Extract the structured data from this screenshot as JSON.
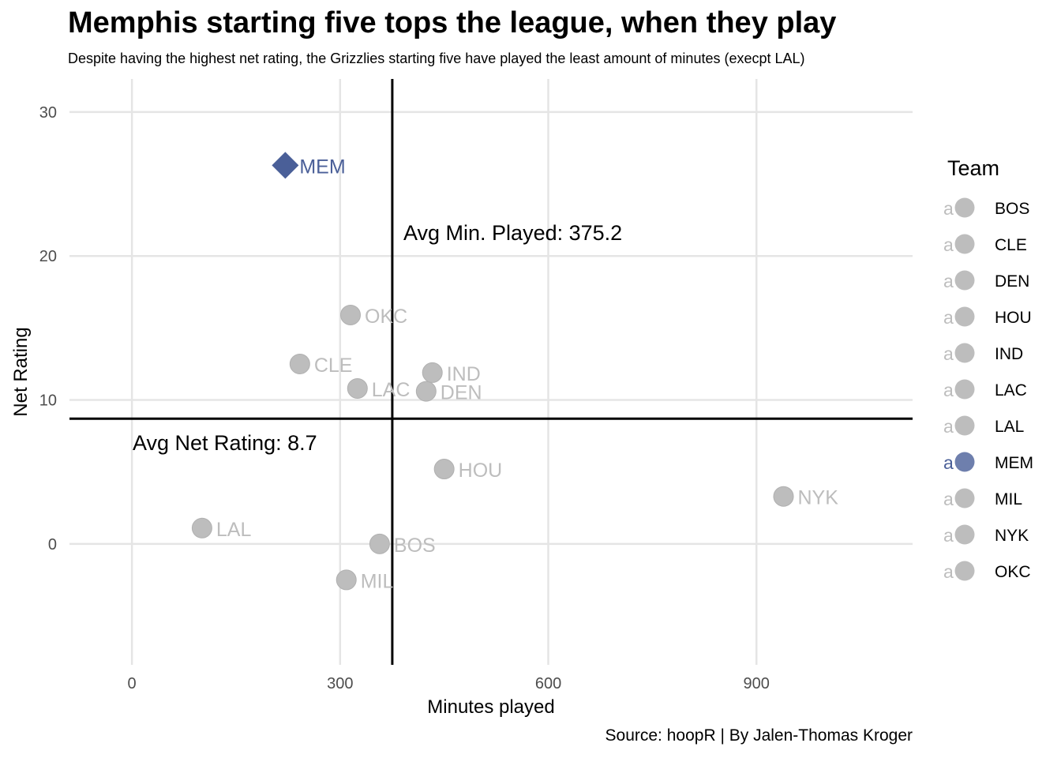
{
  "chart_data": {
    "type": "scatter",
    "title": "Memphis starting five tops the league, when they play",
    "subtitle": "Despite having the highest net rating, the Grizzlies starting five have played the least amount of minutes (execpt LAL)",
    "caption": "Source: hoopR | By Jalen-Thomas Kroger",
    "xlabel": "Minutes played",
    "ylabel": "Net Rating",
    "xlim": [
      -90,
      1125
    ],
    "ylim": [
      -8.4,
      32.3
    ],
    "x_ticks": [
      0,
      300,
      600,
      900
    ],
    "y_ticks": [
      0,
      10,
      20,
      30
    ],
    "grid": true,
    "legend": {
      "title": "Team",
      "position": "right",
      "glyph": "a"
    },
    "colors": {
      "highlight": "#4a5f98",
      "other": "#bdbdbd",
      "reference_line": "#000000",
      "grid": "#e5e5e5"
    },
    "reference_lines": {
      "vertical": {
        "x": 375.2,
        "label": "Avg Min. Played: 375.2"
      },
      "horizontal": {
        "y": 8.7,
        "label": "Avg Net Rating: 8.7"
      }
    },
    "points": [
      {
        "team": "BOS",
        "x": 357,
        "y": 0.0,
        "highlight": false
      },
      {
        "team": "CLE",
        "x": 242,
        "y": 12.5,
        "highlight": false
      },
      {
        "team": "DEN",
        "x": 424,
        "y": 10.6,
        "highlight": false
      },
      {
        "team": "HOU",
        "x": 450,
        "y": 5.2,
        "highlight": false
      },
      {
        "team": "IND",
        "x": 433,
        "y": 11.9,
        "highlight": false
      },
      {
        "team": "LAC",
        "x": 325,
        "y": 10.8,
        "highlight": false
      },
      {
        "team": "LAL",
        "x": 101,
        "y": 1.1,
        "highlight": false
      },
      {
        "team": "MEM",
        "x": 221,
        "y": 26.3,
        "highlight": true
      },
      {
        "team": "MIL",
        "x": 309,
        "y": -2.5,
        "highlight": false
      },
      {
        "team": "NYK",
        "x": 939,
        "y": 3.3,
        "highlight": false
      },
      {
        "team": "OKC",
        "x": 315,
        "y": 15.9,
        "highlight": false
      }
    ]
  }
}
